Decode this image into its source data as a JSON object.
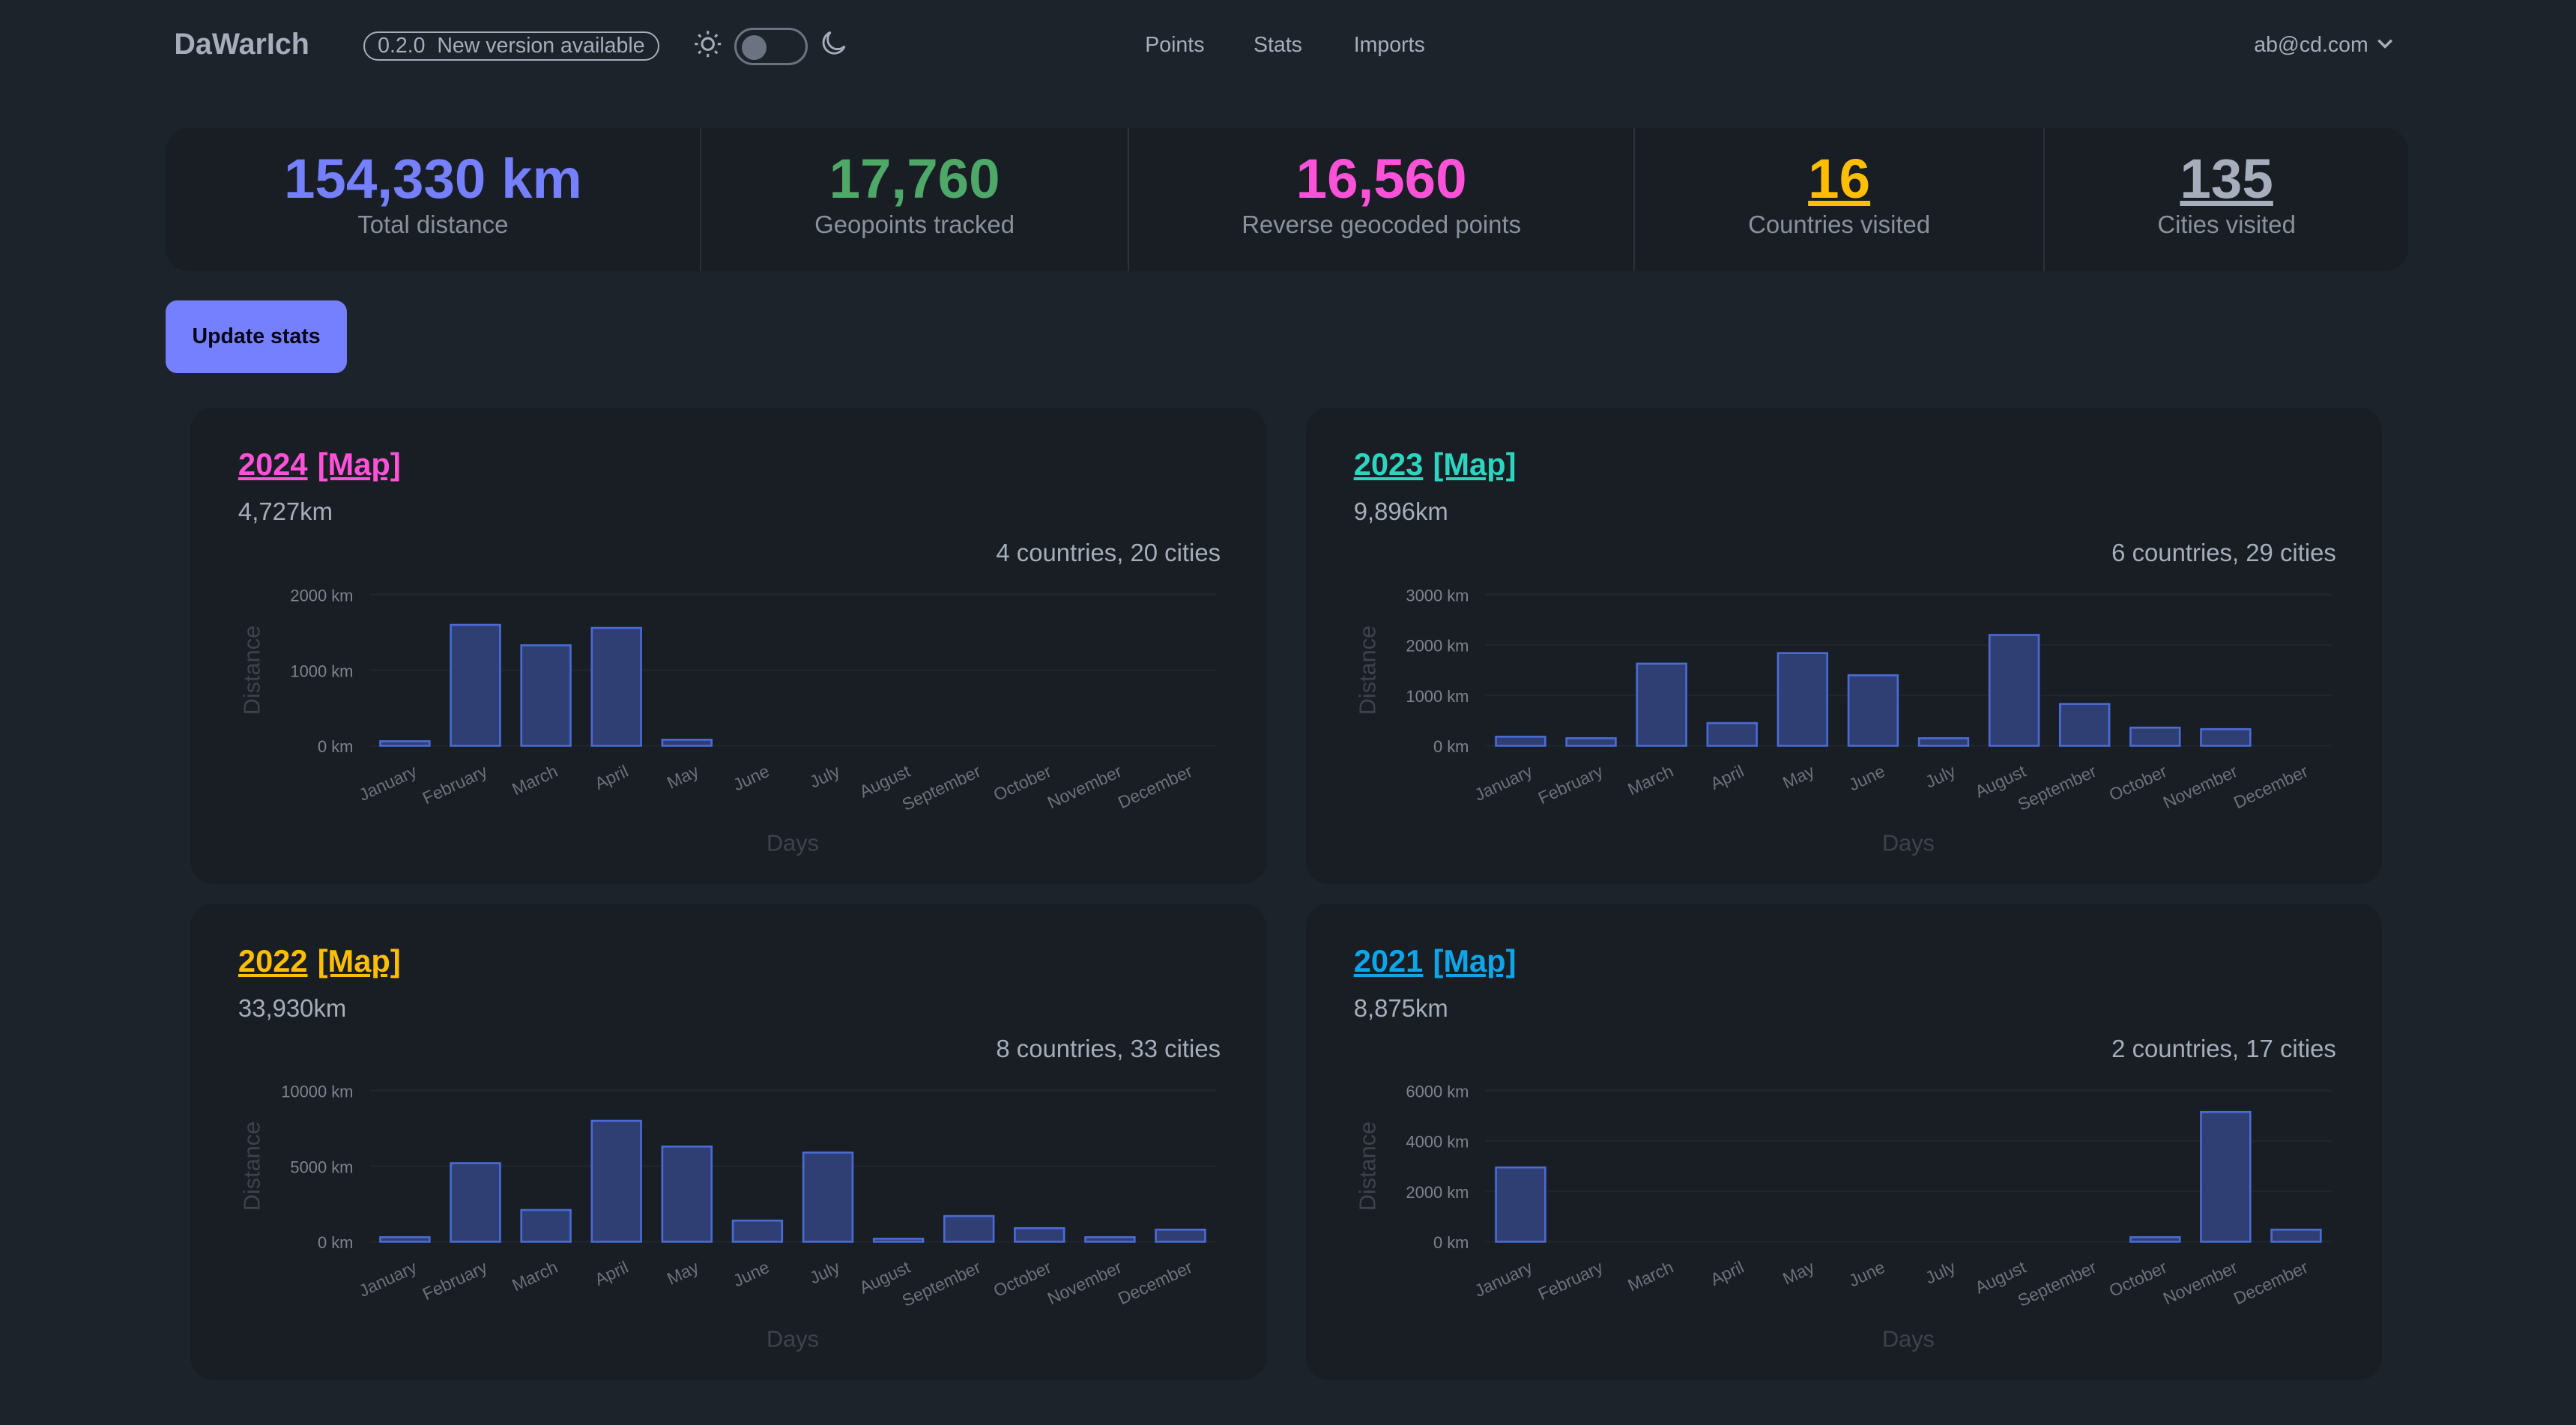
{
  "app": {
    "brand": "DaWarIch",
    "version_badge": "0.2.0  New version available",
    "menu": [
      "Points",
      "Stats",
      "Imports"
    ],
    "user": "ab@cd.com",
    "theme_icons": [
      "sun-icon",
      "moon-icon"
    ],
    "theme_dark": false
  },
  "stats": [
    {
      "value": "154,330 km",
      "label": "Total distance",
      "color": "#7480ff"
    },
    {
      "value": "17,760",
      "label": "Geopoints tracked",
      "color": "#4ea868"
    },
    {
      "value": "16,560",
      "label": "Reverse geocoded points",
      "color": "#ff52d9"
    },
    {
      "value": "16",
      "label": "Countries visited",
      "color": "#ffbe00"
    },
    {
      "value": "135",
      "label": "Cities visited",
      "color": "#a6adbb"
    }
  ],
  "update_button": "Update stats",
  "chart_data": [
    {
      "type": "bar",
      "year": "2024",
      "map_label": "[Map]",
      "color": "#ff52d9",
      "distance": "4,727km",
      "summary": "4 countries, 20 cities",
      "xlabel": "Days",
      "ylabel": "Distance",
      "ylim": [
        0,
        2000
      ],
      "yticks": [
        "0 km",
        "1000 km",
        "2000 km"
      ],
      "ytick_values": [
        0,
        1000,
        2000
      ],
      "categories": [
        "January",
        "February",
        "March",
        "April",
        "May",
        "June",
        "July",
        "August",
        "September",
        "October",
        "November",
        "December"
      ],
      "values": [
        60,
        1600,
        1330,
        1560,
        80,
        0,
        0,
        0,
        0,
        0,
        0,
        0
      ]
    },
    {
      "type": "bar",
      "year": "2023",
      "map_label": "[Map]",
      "color": "#2dd4bf",
      "distance": "9,896km",
      "summary": "6 countries, 29 cities",
      "xlabel": "Days",
      "ylabel": "Distance",
      "ylim": [
        0,
        3000
      ],
      "yticks": [
        "0 km",
        "1000 km",
        "2000 km",
        "3000 km"
      ],
      "ytick_values": [
        0,
        1000,
        2000,
        3000
      ],
      "categories": [
        "January",
        "February",
        "March",
        "April",
        "May",
        "June",
        "July",
        "August",
        "September",
        "October",
        "November",
        "December"
      ],
      "values": [
        180,
        150,
        1630,
        450,
        1840,
        1400,
        150,
        2200,
        830,
        360,
        330,
        0
      ]
    },
    {
      "type": "bar",
      "year": "2022",
      "map_label": "[Map]",
      "color": "#ffbe00",
      "distance": "33,930km",
      "summary": "8 countries, 33 cities",
      "xlabel": "Days",
      "ylabel": "Distance",
      "ylim": [
        0,
        10000
      ],
      "yticks": [
        "0 km",
        "5000 km",
        "10000 km"
      ],
      "ytick_values": [
        0,
        5000,
        10000
      ],
      "categories": [
        "January",
        "February",
        "March",
        "April",
        "May",
        "June",
        "July",
        "August",
        "September",
        "October",
        "November",
        "December"
      ],
      "values": [
        300,
        5200,
        2100,
        8000,
        6300,
        1400,
        5900,
        200,
        1700,
        900,
        300,
        800
      ]
    },
    {
      "type": "bar",
      "year": "2021",
      "map_label": "[Map]",
      "color": "#0ea5e9",
      "distance": "8,875km",
      "summary": "2 countries, 17 cities",
      "xlabel": "Days",
      "ylabel": "Distance",
      "ylim": [
        0,
        6000
      ],
      "yticks": [
        "0 km",
        "2000 km",
        "4000 km",
        "6000 km"
      ],
      "ytick_values": [
        0,
        2000,
        4000,
        6000
      ],
      "categories": [
        "January",
        "February",
        "March",
        "April",
        "May",
        "June",
        "July",
        "August",
        "September",
        "October",
        "November",
        "December"
      ],
      "values": [
        2950,
        0,
        0,
        0,
        0,
        0,
        0,
        0,
        0,
        180,
        5150,
        480
      ]
    }
  ]
}
